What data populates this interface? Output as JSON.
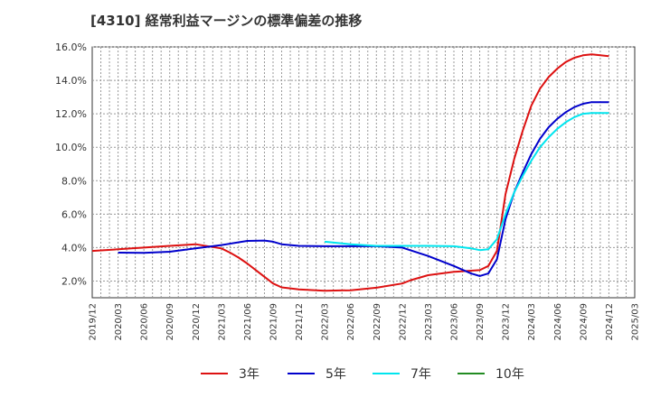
{
  "chart_data": {
    "type": "line",
    "title": "[4310]  経常利益マージンの標準偏差の推移",
    "xlabel": "",
    "ylabel": "",
    "x_ticks": [
      "2019/12",
      "2020/03",
      "2020/06",
      "2020/09",
      "2020/12",
      "2021/03",
      "2021/06",
      "2021/09",
      "2021/12",
      "2022/03",
      "2022/06",
      "2022/09",
      "2022/12",
      "2023/03",
      "2023/06",
      "2023/09",
      "2023/12",
      "2024/03",
      "2024/06",
      "2024/09",
      "2024/12",
      "2025/03"
    ],
    "y_ticks": [
      "2.0%",
      "4.0%",
      "6.0%",
      "8.0%",
      "10.0%",
      "12.0%",
      "14.0%",
      "16.0%"
    ],
    "ylim": [
      1.0,
      16.0
    ],
    "grid": true,
    "legend_position": "bottom",
    "series": [
      {
        "name": "3年",
        "color": "#dd1111",
        "points": [
          [
            "2019/12",
            3.8
          ],
          [
            "2020/03",
            3.9
          ],
          [
            "2020/06",
            4.0
          ],
          [
            "2020/09",
            4.1
          ],
          [
            "2020/12",
            4.2
          ],
          [
            "2021/03",
            3.95
          ],
          [
            "2021/04",
            3.7
          ],
          [
            "2021/05",
            3.4
          ],
          [
            "2021/06",
            3.05
          ],
          [
            "2021/07",
            2.65
          ],
          [
            "2021/08",
            2.25
          ],
          [
            "2021/09",
            1.85
          ],
          [
            "2021/10",
            1.62
          ],
          [
            "2021/12",
            1.5
          ],
          [
            "2022/03",
            1.42
          ],
          [
            "2022/06",
            1.45
          ],
          [
            "2022/09",
            1.6
          ],
          [
            "2022/12",
            1.85
          ],
          [
            "2023/01",
            2.05
          ],
          [
            "2023/03",
            2.35
          ],
          [
            "2023/06",
            2.55
          ],
          [
            "2023/09",
            2.65
          ],
          [
            "2023/10",
            2.9
          ],
          [
            "2023/11",
            3.8
          ],
          [
            "2023/12",
            7.2
          ],
          [
            "2024/01",
            9.3
          ],
          [
            "2024/02",
            11.0
          ],
          [
            "2024/03",
            12.5
          ],
          [
            "2024/04",
            13.5
          ],
          [
            "2024/05",
            14.2
          ],
          [
            "2024/06",
            14.7
          ],
          [
            "2024/07",
            15.1
          ],
          [
            "2024/08",
            15.35
          ],
          [
            "2024/09",
            15.5
          ],
          [
            "2024/10",
            15.55
          ],
          [
            "2024/11",
            15.5
          ],
          [
            "2024/12",
            15.45
          ]
        ]
      },
      {
        "name": "5年",
        "color": "#0000cc",
        "points": [
          [
            "2020/03",
            3.7
          ],
          [
            "2020/06",
            3.68
          ],
          [
            "2020/09",
            3.75
          ],
          [
            "2020/12",
            3.95
          ],
          [
            "2021/03",
            4.15
          ],
          [
            "2021/06",
            4.4
          ],
          [
            "2021/08",
            4.42
          ],
          [
            "2021/09",
            4.35
          ],
          [
            "2021/10",
            4.2
          ],
          [
            "2021/12",
            4.1
          ],
          [
            "2022/03",
            4.08
          ],
          [
            "2022/06",
            4.08
          ],
          [
            "2022/09",
            4.08
          ],
          [
            "2022/12",
            4.0
          ],
          [
            "2023/03",
            3.5
          ],
          [
            "2023/06",
            2.9
          ],
          [
            "2023/08",
            2.45
          ],
          [
            "2023/09",
            2.3
          ],
          [
            "2023/10",
            2.45
          ],
          [
            "2023/11",
            3.3
          ],
          [
            "2023/12",
            5.7
          ],
          [
            "2024/01",
            7.3
          ],
          [
            "2024/02",
            8.5
          ],
          [
            "2024/03",
            9.6
          ],
          [
            "2024/04",
            10.5
          ],
          [
            "2024/05",
            11.2
          ],
          [
            "2024/06",
            11.7
          ],
          [
            "2024/07",
            12.1
          ],
          [
            "2024/08",
            12.4
          ],
          [
            "2024/09",
            12.6
          ],
          [
            "2024/10",
            12.7
          ],
          [
            "2024/12",
            12.7
          ]
        ]
      },
      {
        "name": "7年",
        "color": "#00e5ee",
        "points": [
          [
            "2022/03",
            4.35
          ],
          [
            "2022/06",
            4.2
          ],
          [
            "2022/09",
            4.1
          ],
          [
            "2022/12",
            4.1
          ],
          [
            "2023/03",
            4.1
          ],
          [
            "2023/06",
            4.08
          ],
          [
            "2023/08",
            3.95
          ],
          [
            "2023/09",
            3.85
          ],
          [
            "2023/10",
            3.9
          ],
          [
            "2023/11",
            4.5
          ],
          [
            "2023/12",
            6.0
          ],
          [
            "2024/01",
            7.3
          ],
          [
            "2024/02",
            8.3
          ],
          [
            "2024/03",
            9.2
          ],
          [
            "2024/04",
            10.0
          ],
          [
            "2024/05",
            10.6
          ],
          [
            "2024/06",
            11.1
          ],
          [
            "2024/07",
            11.5
          ],
          [
            "2024/08",
            11.8
          ],
          [
            "2024/09",
            12.0
          ],
          [
            "2024/10",
            12.05
          ],
          [
            "2024/12",
            12.05
          ]
        ]
      },
      {
        "name": "10年",
        "color": "#228b22",
        "points": []
      }
    ]
  }
}
